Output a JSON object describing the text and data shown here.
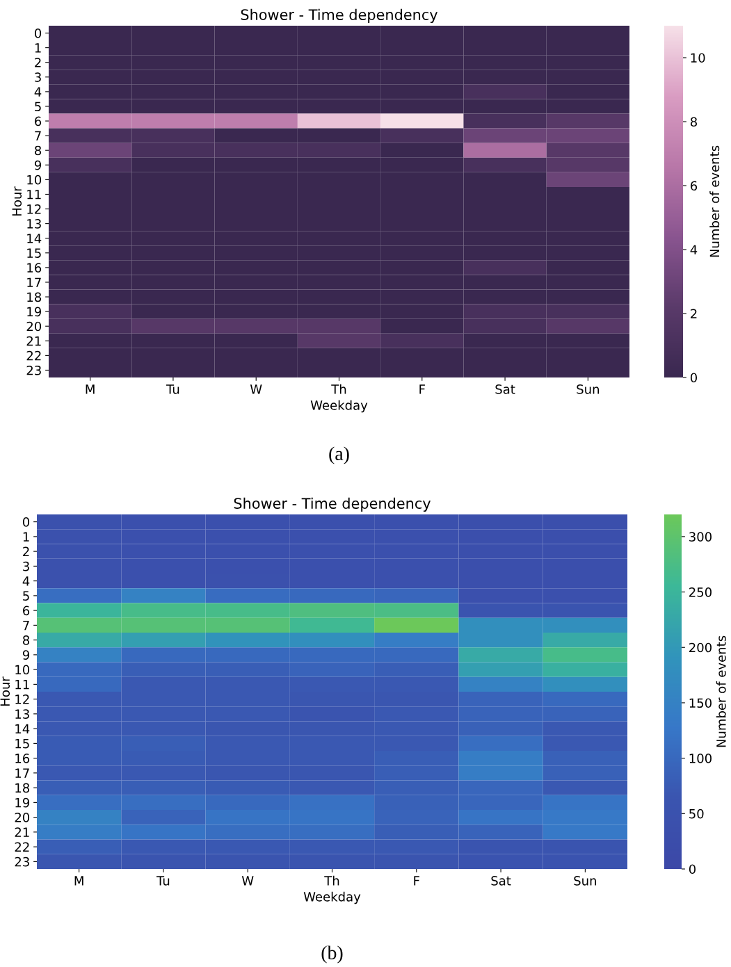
{
  "chart_data": [
    {
      "type": "heatmap",
      "title": "Shower - Time dependency",
      "xlabel": "Weekday",
      "ylabel": "Hour",
      "clabel": "Number of events",
      "categories": [
        "M",
        "Tu",
        "W",
        "Th",
        "F",
        "Sat",
        "Sun"
      ],
      "y_categories": [
        "0",
        "1",
        "2",
        "3",
        "4",
        "5",
        "6",
        "7",
        "8",
        "9",
        "10",
        "11",
        "12",
        "13",
        "14",
        "15",
        "16",
        "17",
        "18",
        "19",
        "20",
        "21",
        "22",
        "23"
      ],
      "cells": [
        [
          0,
          0,
          0,
          0,
          0,
          0,
          0
        ],
        [
          0,
          0,
          0,
          0,
          0,
          0,
          0
        ],
        [
          0,
          0,
          0,
          0,
          0,
          0,
          0
        ],
        [
          0,
          0,
          0,
          0,
          0,
          0,
          0
        ],
        [
          0,
          0,
          0,
          0,
          0,
          1,
          0
        ],
        [
          0,
          0,
          0,
          0,
          0,
          0,
          0
        ],
        [
          7,
          7,
          7,
          10,
          11,
          1,
          2
        ],
        [
          1,
          1,
          0,
          0,
          1,
          3,
          3
        ],
        [
          3,
          1,
          1,
          1,
          0,
          6,
          2
        ],
        [
          1,
          0,
          0,
          0,
          0,
          1,
          2
        ],
        [
          0,
          0,
          0,
          0,
          0,
          0,
          3
        ],
        [
          0,
          0,
          0,
          0,
          0,
          0,
          0
        ],
        [
          0,
          0,
          0,
          0,
          0,
          0,
          0
        ],
        [
          0,
          0,
          0,
          0,
          0,
          0,
          0
        ],
        [
          0,
          0,
          0,
          0,
          0,
          0,
          0
        ],
        [
          0,
          0,
          0,
          0,
          0,
          0,
          0
        ],
        [
          0,
          0,
          0,
          0,
          0,
          1,
          0
        ],
        [
          0,
          0,
          0,
          0,
          0,
          0,
          0
        ],
        [
          0,
          0,
          0,
          0,
          0,
          0,
          0
        ],
        [
          1,
          0,
          0,
          0,
          0,
          1,
          1
        ],
        [
          1,
          2,
          2,
          2,
          0,
          1,
          2
        ],
        [
          0,
          0,
          0,
          2,
          1,
          0,
          0
        ],
        [
          0,
          0,
          0,
          0,
          0,
          0,
          0
        ],
        [
          0,
          0,
          0,
          0,
          0,
          0,
          0
        ]
      ],
      "clim": [
        0,
        11
      ],
      "cticks": [
        0,
        2,
        4,
        6,
        8,
        10
      ],
      "annotations": [
        "(a)"
      ]
    },
    {
      "type": "heatmap",
      "title": "Shower - Time dependency",
      "xlabel": "Weekday",
      "ylabel": "Hour",
      "clabel": "Number of events",
      "categories": [
        "M",
        "Tu",
        "W",
        "Th",
        "F",
        "Sat",
        "Sun"
      ],
      "y_categories": [
        "0",
        "1",
        "2",
        "3",
        "4",
        "5",
        "6",
        "7",
        "8",
        "9",
        "10",
        "11",
        "12",
        "13",
        "14",
        "15",
        "16",
        "17",
        "18",
        "19",
        "20",
        "21",
        "22",
        "23"
      ],
      "cells": [
        [
          45,
          40,
          40,
          40,
          40,
          35,
          35
        ],
        [
          45,
          40,
          40,
          40,
          40,
          35,
          35
        ],
        [
          45,
          40,
          40,
          40,
          40,
          35,
          35
        ],
        [
          45,
          40,
          40,
          40,
          40,
          35,
          35
        ],
        [
          45,
          40,
          45,
          40,
          40,
          35,
          35
        ],
        [
          110,
          150,
          105,
          100,
          95,
          40,
          40
        ],
        [
          250,
          270,
          270,
          280,
          275,
          60,
          60
        ],
        [
          290,
          290,
          290,
          260,
          320,
          180,
          180
        ],
        [
          230,
          210,
          190,
          180,
          140,
          180,
          230
        ],
        [
          150,
          100,
          100,
          100,
          100,
          230,
          270
        ],
        [
          100,
          80,
          80,
          90,
          80,
          210,
          240
        ],
        [
          100,
          70,
          70,
          70,
          70,
          150,
          180
        ],
        [
          70,
          70,
          70,
          65,
          65,
          90,
          100
        ],
        [
          70,
          70,
          70,
          60,
          70,
          90,
          90
        ],
        [
          70,
          70,
          65,
          65,
          70,
          85,
          70
        ],
        [
          75,
          80,
          70,
          70,
          70,
          110,
          70
        ],
        [
          75,
          75,
          70,
          70,
          80,
          140,
          85
        ],
        [
          70,
          70,
          65,
          65,
          80,
          140,
          85
        ],
        [
          80,
          80,
          75,
          70,
          80,
          95,
          70
        ],
        [
          110,
          110,
          100,
          115,
          85,
          95,
          120
        ],
        [
          150,
          90,
          120,
          120,
          90,
          120,
          130
        ],
        [
          140,
          120,
          110,
          110,
          80,
          90,
          130
        ],
        [
          80,
          70,
          70,
          70,
          70,
          60,
          60
        ],
        [
          65,
          60,
          60,
          60,
          60,
          55,
          55
        ]
      ],
      "clim": [
        0,
        320
      ],
      "cticks": [
        0,
        50,
        100,
        150,
        200,
        250,
        300
      ],
      "annotations": [
        "(b)"
      ]
    }
  ]
}
